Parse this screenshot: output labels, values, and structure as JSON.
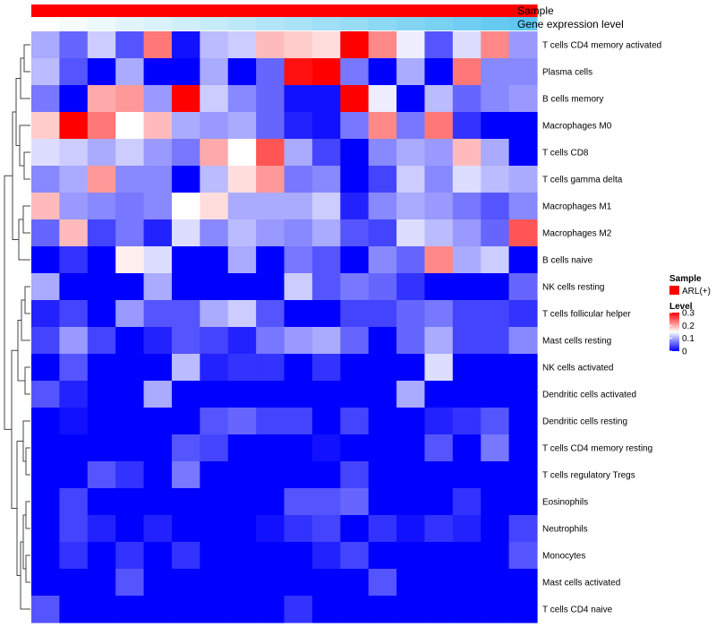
{
  "chart_data": {
    "type": "heatmap",
    "title": "",
    "annotation_rows": [
      {
        "label": "Sample",
        "legend_title": "Sample",
        "legend_items": [
          {
            "label": "ARL(+)",
            "color": "#ff0000"
          }
        ]
      },
      {
        "label": "Gene expression level"
      }
    ],
    "gene_expression_gradient": {
      "from": "#ffffff",
      "to": "#5ec8f0"
    },
    "legend": {
      "title": "Level",
      "ticks": [
        "0.3",
        "0.2",
        "0.1",
        "0"
      ],
      "tick_values": [
        0.3,
        0.2,
        0.1,
        0
      ],
      "range": [
        0,
        0.3
      ],
      "colors": {
        "low": "#0000ff",
        "mid": "#ffffff",
        "high": "#ff0000"
      }
    },
    "rows": [
      "T cells CD4 memory activated",
      "Plasma cells",
      "B cells memory",
      "Macrophages M0",
      "T cells CD8",
      "T cells gamma delta",
      "Macrophages M1",
      "Macrophages M2",
      "B cells naive",
      "NK cells resting",
      "T cells follicular helper",
      "Mast cells resting",
      "NK cells activated",
      "Dendritic cells activated",
      "Dendritic cells resting",
      "T cells CD4 memory resting",
      "T cells regulatory  Tregs",
      "Eosinophils",
      "Neutrophils",
      "Monocytes",
      "Mast cells activated",
      "T cells CD4 naive"
    ],
    "n_samples": 18,
    "values": [
      [
        0.1,
        0.06,
        0.12,
        0.05,
        0.23,
        0.01,
        0.11,
        0.12,
        0.19,
        0.18,
        0.17,
        0.3,
        0.22,
        0.14,
        0.05,
        0.13,
        0.22,
        0.09
      ],
      [
        0.11,
        0.05,
        0.0,
        0.1,
        0.0,
        0.0,
        0.1,
        0.0,
        0.06,
        0.29,
        0.3,
        0.07,
        0.0,
        0.1,
        0.0,
        0.23,
        0.08,
        0.08
      ],
      [
        0.07,
        0.0,
        0.2,
        0.21,
        0.09,
        0.3,
        0.12,
        0.08,
        0.06,
        0.01,
        0.01,
        0.3,
        0.14,
        0.0,
        0.11,
        0.06,
        0.08,
        0.09
      ],
      [
        0.18,
        0.3,
        0.23,
        0.15,
        0.19,
        0.1,
        0.09,
        0.1,
        0.06,
        0.02,
        0.01,
        0.07,
        0.22,
        0.07,
        0.23,
        0.03,
        0.0,
        0.0
      ],
      [
        0.13,
        0.12,
        0.1,
        0.12,
        0.09,
        0.07,
        0.2,
        0.15,
        0.25,
        0.1,
        0.04,
        0.0,
        0.08,
        0.1,
        0.09,
        0.19,
        0.1,
        0.0
      ],
      [
        0.08,
        0.1,
        0.21,
        0.08,
        0.08,
        0.0,
        0.11,
        0.17,
        0.21,
        0.07,
        0.08,
        0.0,
        0.04,
        0.12,
        0.08,
        0.13,
        0.11,
        0.1
      ],
      [
        0.19,
        0.09,
        0.08,
        0.07,
        0.08,
        0.15,
        0.17,
        0.1,
        0.1,
        0.1,
        0.12,
        0.02,
        0.08,
        0.1,
        0.09,
        0.07,
        0.05,
        0.08
      ],
      [
        0.06,
        0.19,
        0.04,
        0.07,
        0.02,
        0.13,
        0.08,
        0.11,
        0.09,
        0.08,
        0.1,
        0.05,
        0.04,
        0.13,
        0.11,
        0.09,
        0.06,
        0.25
      ],
      [
        0.0,
        0.03,
        0.0,
        0.16,
        0.13,
        0.0,
        0.0,
        0.1,
        0.0,
        0.07,
        0.05,
        0.0,
        0.08,
        0.06,
        0.22,
        0.1,
        0.12,
        0.0
      ],
      [
        0.1,
        0.0,
        0.0,
        0.0,
        0.1,
        0.0,
        0.0,
        0.0,
        0.0,
        0.12,
        0.05,
        0.07,
        0.06,
        0.03,
        0.0,
        0.0,
        0.0,
        0.06
      ],
      [
        0.02,
        0.04,
        0.0,
        0.09,
        0.05,
        0.05,
        0.1,
        0.12,
        0.05,
        0.0,
        0.0,
        0.04,
        0.04,
        0.06,
        0.07,
        0.04,
        0.04,
        0.03
      ],
      [
        0.04,
        0.09,
        0.04,
        0.0,
        0.02,
        0.05,
        0.04,
        0.02,
        0.07,
        0.09,
        0.1,
        0.06,
        0.0,
        0.06,
        0.1,
        0.04,
        0.04,
        0.08
      ],
      [
        0.0,
        0.05,
        0.0,
        0.0,
        0.0,
        0.11,
        0.02,
        0.03,
        0.03,
        0.0,
        0.03,
        0.0,
        0.0,
        0.0,
        0.13,
        0.0,
        0.0,
        0.0
      ],
      [
        0.05,
        0.02,
        0.0,
        0.0,
        0.1,
        0.0,
        0.0,
        0.0,
        0.0,
        0.0,
        0.0,
        0.0,
        0.0,
        0.1,
        0.0,
        0.0,
        0.0,
        0.0
      ],
      [
        0.0,
        0.01,
        0.0,
        0.0,
        0.0,
        0.0,
        0.05,
        0.06,
        0.04,
        0.04,
        0.0,
        0.04,
        0.0,
        0.0,
        0.02,
        0.03,
        0.05,
        0.0
      ],
      [
        0.0,
        0.0,
        0.0,
        0.0,
        0.0,
        0.05,
        0.04,
        0.0,
        0.0,
        0.0,
        0.01,
        0.0,
        0.0,
        0.0,
        0.05,
        0.0,
        0.07,
        0.0
      ],
      [
        0.0,
        0.0,
        0.05,
        0.03,
        0.0,
        0.07,
        0.0,
        0.0,
        0.0,
        0.0,
        0.0,
        0.04,
        0.0,
        0.0,
        0.0,
        0.0,
        0.0,
        0.0
      ],
      [
        0.0,
        0.04,
        0.0,
        0.0,
        0.0,
        0.0,
        0.0,
        0.0,
        0.0,
        0.05,
        0.05,
        0.06,
        0.0,
        0.0,
        0.0,
        0.03,
        0.0,
        0.0
      ],
      [
        0.0,
        0.04,
        0.02,
        0.0,
        0.02,
        0.0,
        0.0,
        0.0,
        0.01,
        0.03,
        0.04,
        0.0,
        0.03,
        0.01,
        0.03,
        0.02,
        0.0,
        0.04
      ],
      [
        0.0,
        0.03,
        0.0,
        0.03,
        0.0,
        0.03,
        0.0,
        0.0,
        0.0,
        0.0,
        0.02,
        0.04,
        0.0,
        0.0,
        0.0,
        0.0,
        0.0,
        0.05
      ],
      [
        0.0,
        0.0,
        0.0,
        0.05,
        0.0,
        0.0,
        0.0,
        0.0,
        0.0,
        0.0,
        0.0,
        0.0,
        0.05,
        0.0,
        0.0,
        0.0,
        0.0,
        0.0
      ],
      [
        0.05,
        0.0,
        0.0,
        0.0,
        0.0,
        0.0,
        0.0,
        0.0,
        0.0,
        0.03,
        0.0,
        0.0,
        0.0,
        0.0,
        0.0,
        0.0,
        0.0,
        0.0
      ]
    ]
  }
}
